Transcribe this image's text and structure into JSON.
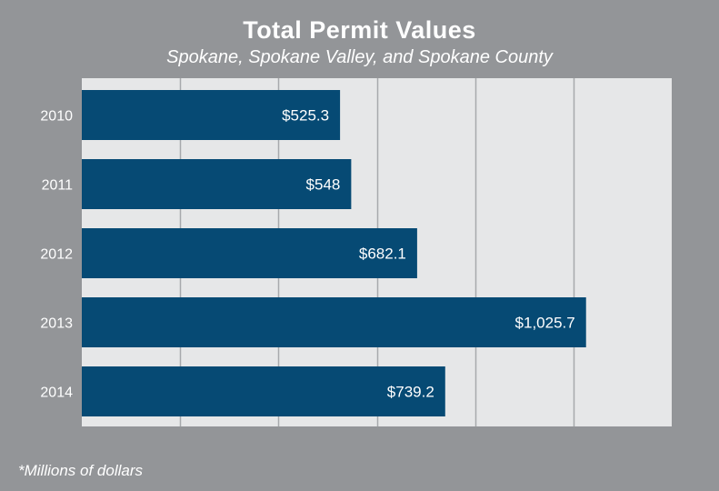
{
  "chart_data": {
    "type": "bar",
    "orientation": "horizontal",
    "title": "Total Permit Values",
    "subtitle": "Spokane, Spokane Valley, and Spokane County",
    "categories": [
      "2010",
      "2011",
      "2012",
      "2013",
      "2014"
    ],
    "values": [
      525.3,
      548,
      682.1,
      1025.7,
      739.2
    ],
    "data_labels": [
      "$525.3",
      "$548",
      "$682.1",
      "$1,025.7",
      "$739.2"
    ],
    "xlabel": "",
    "ylabel": "",
    "xlim": [
      0,
      1200
    ],
    "grid_step": 200,
    "grid": true,
    "footnote": "*Millions of dollars",
    "colors": {
      "bar": "#064a74",
      "plot_bg": "#e6e7e8",
      "page_bg": "#939598",
      "grid": "#a7a9ac",
      "text": "#ffffff"
    }
  }
}
